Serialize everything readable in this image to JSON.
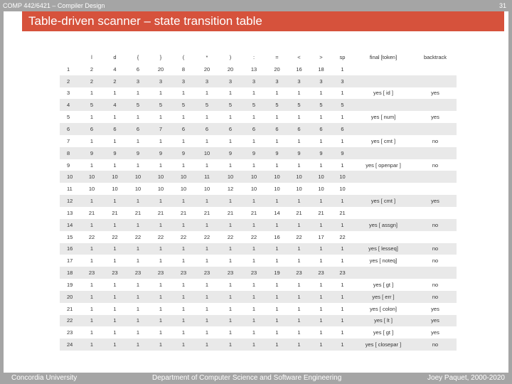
{
  "header": {
    "course": "COMP 442/6421 – Compiler Design",
    "page_number": "31"
  },
  "title": "Table-driven scanner – state transition table",
  "table": {
    "columns": [
      "",
      "l",
      "d",
      "{",
      "}",
      "(",
      "*",
      ")",
      ":",
      "=",
      "<",
      ">",
      "sp",
      "final [token]",
      "backtrack"
    ],
    "rows": [
      [
        "1",
        "2",
        "4",
        "6",
        "20",
        "8",
        "20",
        "20",
        "13",
        "20",
        "16",
        "18",
        "1",
        "",
        ""
      ],
      [
        "2",
        "2",
        "2",
        "3",
        "3",
        "3",
        "3",
        "3",
        "3",
        "3",
        "3",
        "3",
        "3",
        "",
        ""
      ],
      [
        "3",
        "1",
        "1",
        "1",
        "1",
        "1",
        "1",
        "1",
        "1",
        "1",
        "1",
        "1",
        "1",
        "yes [ id ]",
        "yes"
      ],
      [
        "4",
        "5",
        "4",
        "5",
        "5",
        "5",
        "5",
        "5",
        "5",
        "5",
        "5",
        "5",
        "5",
        "",
        ""
      ],
      [
        "5",
        "1",
        "1",
        "1",
        "1",
        "1",
        "1",
        "1",
        "1",
        "1",
        "1",
        "1",
        "1",
        "yes [ num]",
        "yes"
      ],
      [
        "6",
        "6",
        "6",
        "6",
        "7",
        "6",
        "6",
        "6",
        "6",
        "6",
        "6",
        "6",
        "6",
        "",
        ""
      ],
      [
        "7",
        "1",
        "1",
        "1",
        "1",
        "1",
        "1",
        "1",
        "1",
        "1",
        "1",
        "1",
        "1",
        "yes [ cmt ]",
        "no"
      ],
      [
        "8",
        "9",
        "9",
        "9",
        "9",
        "9",
        "10",
        "9",
        "9",
        "9",
        "9",
        "9",
        "9",
        "",
        ""
      ],
      [
        "9",
        "1",
        "1",
        "1",
        "1",
        "1",
        "1",
        "1",
        "1",
        "1",
        "1",
        "1",
        "1",
        "yes [ openpar ]",
        "no"
      ],
      [
        "10",
        "10",
        "10",
        "10",
        "10",
        "10",
        "11",
        "10",
        "10",
        "10",
        "10",
        "10",
        "10",
        "",
        ""
      ],
      [
        "11",
        "10",
        "10",
        "10",
        "10",
        "10",
        "10",
        "12",
        "10",
        "10",
        "10",
        "10",
        "10",
        "",
        ""
      ],
      [
        "12",
        "1",
        "1",
        "1",
        "1",
        "1",
        "1",
        "1",
        "1",
        "1",
        "1",
        "1",
        "1",
        "yes [ cmt ]",
        "yes"
      ],
      [
        "13",
        "21",
        "21",
        "21",
        "21",
        "21",
        "21",
        "21",
        "21",
        "14",
        "21",
        "21",
        "21",
        "",
        ""
      ],
      [
        "14",
        "1",
        "1",
        "1",
        "1",
        "1",
        "1",
        "1",
        "1",
        "1",
        "1",
        "1",
        "1",
        "yes [ assgn]",
        "no"
      ],
      [
        "15",
        "22",
        "22",
        "22",
        "22",
        "22",
        "22",
        "22",
        "22",
        "16",
        "22",
        "17",
        "22",
        "",
        ""
      ],
      [
        "16",
        "1",
        "1",
        "1",
        "1",
        "1",
        "1",
        "1",
        "1",
        "1",
        "1",
        "1",
        "1",
        "yes [ lesseq]",
        "no"
      ],
      [
        "17",
        "1",
        "1",
        "1",
        "1",
        "1",
        "1",
        "1",
        "1",
        "1",
        "1",
        "1",
        "1",
        "yes [ noteq]",
        "no"
      ],
      [
        "18",
        "23",
        "23",
        "23",
        "23",
        "23",
        "23",
        "23",
        "23",
        "19",
        "23",
        "23",
        "23",
        "",
        ""
      ],
      [
        "19",
        "1",
        "1",
        "1",
        "1",
        "1",
        "1",
        "1",
        "1",
        "1",
        "1",
        "1",
        "1",
        "yes [ gt ]",
        "no"
      ],
      [
        "20",
        "1",
        "1",
        "1",
        "1",
        "1",
        "1",
        "1",
        "1",
        "1",
        "1",
        "1",
        "1",
        "yes [ err ]",
        "no"
      ],
      [
        "21",
        "1",
        "1",
        "1",
        "1",
        "1",
        "1",
        "1",
        "1",
        "1",
        "1",
        "1",
        "1",
        "yes [ colon]",
        "yes"
      ],
      [
        "22",
        "1",
        "1",
        "1",
        "1",
        "1",
        "1",
        "1",
        "1",
        "1",
        "1",
        "1",
        "1",
        "yes [ lt ]",
        "yes"
      ],
      [
        "23",
        "1",
        "1",
        "1",
        "1",
        "1",
        "1",
        "1",
        "1",
        "1",
        "1",
        "1",
        "1",
        "yes [ gt ]",
        "yes"
      ],
      [
        "24",
        "1",
        "1",
        "1",
        "1",
        "1",
        "1",
        "1",
        "1",
        "1",
        "1",
        "1",
        "1",
        "yes [ closepar ]",
        "no"
      ]
    ]
  },
  "footer": {
    "left": "Concordia University",
    "center": "Department of Computer Science and Software Engineering",
    "right": "Joey Paquet, 2000-2020"
  },
  "colors": {
    "accent": "#d6523c",
    "bars": "#a5a5a5",
    "stripe": "#e9e9e9"
  }
}
